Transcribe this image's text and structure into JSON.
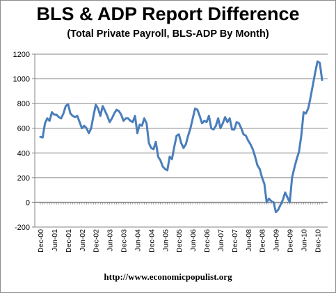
{
  "chart_data": {
    "type": "line",
    "title": "BLS & ADP Report Difference",
    "subtitle": "(Total Private Payroll, BLS-ADP By Month)",
    "xlabel": "",
    "ylabel": "",
    "ylim": [
      -200,
      1200
    ],
    "y_ticks": [
      -200,
      0,
      200,
      400,
      600,
      800,
      1000,
      1200
    ],
    "x_tick_labels": [
      "Dec-00",
      "Jun-01",
      "Dec-01",
      "Jun-02",
      "Dec-02",
      "Jun-03",
      "Dec-03",
      "Jun-04",
      "Dec-04",
      "Jun-05",
      "Dec-05",
      "Jun-06",
      "Dec-06",
      "Jun-07",
      "Dec-07",
      "Jun-08",
      "Dec-08",
      "Jun-09",
      "Dec-09",
      "Jun-10",
      "Dec-10"
    ],
    "grid": "horizontal",
    "legend": "none",
    "line_color": "#4a7ebb",
    "series": [
      {
        "values": [
          530,
          525,
          640,
          680,
          660,
          730,
          710,
          710,
          690,
          680,
          720,
          780,
          795,
          720,
          700,
          690,
          700,
          650,
          600,
          620,
          600,
          560,
          600,
          700,
          790,
          760,
          700,
          780,
          740,
          700,
          650,
          680,
          720,
          750,
          740,
          710,
          660,
          680,
          680,
          660,
          650,
          700,
          560,
          630,
          620,
          680,
          640,
          480,
          440,
          430,
          490,
          370,
          340,
          290,
          270,
          260,
          370,
          350,
          450,
          540,
          550,
          480,
          440,
          470,
          540,
          600,
          680,
          760,
          750,
          700,
          640,
          660,
          650,
          700,
          600,
          590,
          620,
          680,
          600,
          640,
          690,
          650,
          680,
          590,
          590,
          650,
          640,
          600,
          550,
          540,
          500,
          470,
          430,
          370,
          300,
          270,
          200,
          150,
          0,
          30,
          10,
          0,
          -80,
          -60,
          -20,
          20,
          80,
          40,
          0,
          200,
          280,
          350,
          410,
          540,
          730,
          720,
          760,
          850,
          950,
          1050,
          1140,
          1130,
          990
        ]
      }
    ],
    "footer": "http://www.economicpopulist.org"
  }
}
